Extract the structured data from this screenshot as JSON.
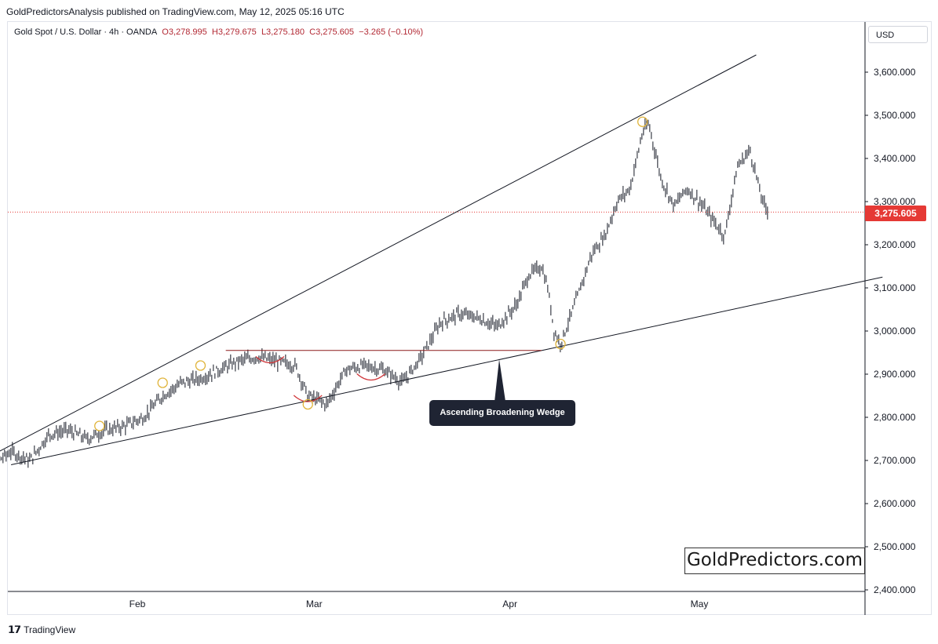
{
  "header": {
    "publisher": "GoldPredictorsAnalysis published on TradingView.com, May 12, 2025 05:16 UTC"
  },
  "legend": {
    "symbol": "Gold Spot / U.S. Dollar · 4h · OANDA",
    "open": "O3,278.995",
    "high": "H3,279.675",
    "low": "L3,275.180",
    "close": "C3,275.605",
    "change": "−3.265 (−0.10%)"
  },
  "currency": "USD",
  "price_label": "3,275.605",
  "annotation_label": "Ascending Broadening Wedge",
  "watermark": "GoldPredictors.com",
  "footer": {
    "brand": "TradingView"
  },
  "colors": {
    "price_line": "#e53935",
    "price_label_bg": "#e53935",
    "circle": "#e0b43a",
    "arc": "#d0363a",
    "resistance": "#8b1a1a",
    "trendline": "#131722",
    "bars": "#131722"
  },
  "chart_data": {
    "type": "line",
    "title": "",
    "xlabel": "",
    "ylabel": "",
    "ylim": [
      2400,
      3700
    ],
    "x_tick_labels": [
      "Feb",
      "Mar",
      "Apr",
      "May"
    ],
    "y_tick_labels": [
      "3,600.000",
      "3,500.000",
      "3,400.000",
      "3,300.000",
      "3,200.000",
      "3,100.000",
      "3,000.000",
      "2,900.000",
      "2,800.000",
      "2,700.000",
      "2,600.000",
      "2,500.000",
      "2,400.000"
    ],
    "y_ticks": [
      3600,
      3500,
      3400,
      3300,
      3200,
      3100,
      3000,
      2900,
      2800,
      2700,
      2600,
      2500,
      2400
    ],
    "last_price": 3275.605,
    "series": [
      {
        "x": [
          "2025-01-06",
          "2025-01-09",
          "2025-01-12",
          "2025-01-15",
          "2025-01-18",
          "2025-01-21",
          "2025-01-24",
          "2025-01-27",
          "2025-01-30",
          "2025-02-02",
          "2025-02-05",
          "2025-02-08",
          "2025-02-11",
          "2025-02-14",
          "2025-02-17",
          "2025-02-20",
          "2025-02-23",
          "2025-02-26",
          "2025-02-28",
          "2025-03-03",
          "2025-03-06",
          "2025-03-09",
          "2025-03-12",
          "2025-03-15",
          "2025-03-18",
          "2025-03-21",
          "2025-03-24",
          "2025-03-27",
          "2025-03-30",
          "2025-04-02",
          "2025-04-04",
          "2025-04-06",
          "2025-04-07",
          "2025-04-08",
          "2025-04-09",
          "2025-04-11",
          "2025-04-14",
          "2025-04-16",
          "2025-04-18",
          "2025-04-20",
          "2025-04-22",
          "2025-04-23",
          "2025-04-25",
          "2025-04-27",
          "2025-04-29",
          "2025-05-01",
          "2025-05-03",
          "2025-05-05",
          "2025-05-07",
          "2025-05-09",
          "2025-05-11",
          "2025-05-12"
        ],
        "values": [
          2660,
          2690,
          2720,
          2700,
          2760,
          2770,
          2750,
          2770,
          2780,
          2800,
          2850,
          2880,
          2890,
          2910,
          2930,
          2940,
          2930,
          2920,
          2850,
          2830,
          2910,
          2920,
          2910,
          2880,
          2940,
          3020,
          3040,
          3030,
          3010,
          3060,
          3130,
          3150,
          3100,
          3000,
          2970,
          3050,
          3180,
          3220,
          3300,
          3330,
          3460,
          3480,
          3350,
          3290,
          3330,
          3300,
          3260,
          3220,
          3380,
          3420,
          3300,
          3275
        ]
      }
    ],
    "annotations": {
      "upper_trendline": {
        "x": [
          "2025-01-10",
          "2025-05-10"
        ],
        "y": [
          2720,
          3640
        ]
      },
      "lower_trendline": {
        "x": [
          "2025-01-12",
          "2025-05-30"
        ],
        "y": [
          2690,
          3125
        ]
      },
      "resistance": {
        "x": [
          "2025-02-15",
          "2025-04-06"
        ],
        "y": [
          2955,
          2955
        ]
      },
      "touch_points": [
        {
          "x": "2025-01-26",
          "y": 2780
        },
        {
          "x": "2025-02-05",
          "y": 2880
        },
        {
          "x": "2025-02-11",
          "y": 2920
        },
        {
          "x": "2025-02-28",
          "y": 2830
        },
        {
          "x": "2025-04-09",
          "y": 2970
        },
        {
          "x": "2025-04-22",
          "y": 3485
        }
      ]
    }
  }
}
